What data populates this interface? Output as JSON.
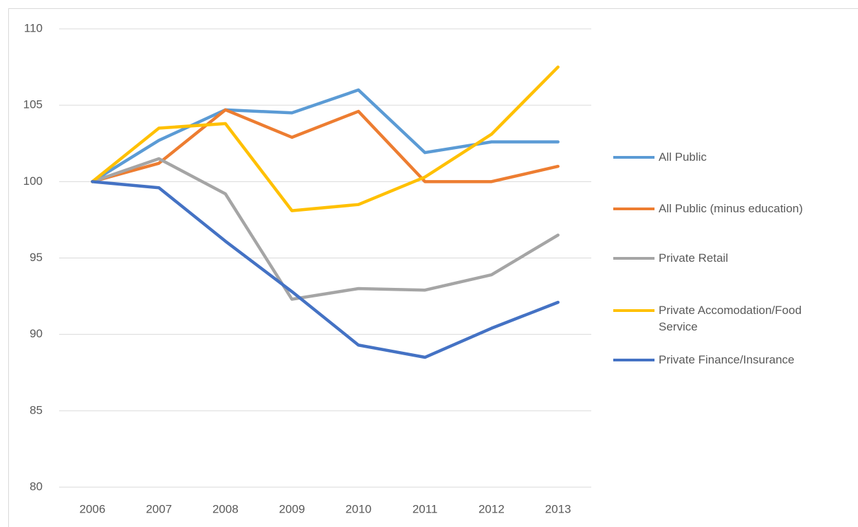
{
  "chart_data": {
    "type": "line",
    "categories": [
      "2006",
      "2007",
      "2008",
      "2009",
      "2010",
      "2011",
      "2012",
      "2013"
    ],
    "series": [
      {
        "name": "All Public",
        "color": "#5b9bd5",
        "values": [
          100,
          102.7,
          104.7,
          104.5,
          106.0,
          101.9,
          102.6,
          102.6
        ]
      },
      {
        "name": "All Public (minus education)",
        "color": "#ed7d31",
        "values": [
          100,
          101.2,
          104.7,
          102.9,
          104.6,
          100.0,
          100.0,
          101.0
        ]
      },
      {
        "name": "Private Retail",
        "color": "#a5a5a5",
        "values": [
          100,
          101.5,
          99.2,
          92.3,
          93.0,
          92.9,
          93.9,
          96.5
        ]
      },
      {
        "name": "Private Accomodation/Food Service",
        "color": "#ffc000",
        "values": [
          100,
          103.5,
          103.8,
          98.1,
          98.5,
          100.3,
          103.1,
          107.5
        ]
      },
      {
        "name": "Private Finance/Insurance",
        "color": "#4472c4",
        "values": [
          100,
          99.6,
          96.1,
          92.8,
          89.3,
          88.5,
          90.4,
          92.1
        ]
      }
    ],
    "ylim": [
      80,
      110
    ],
    "yticks": [
      80,
      85,
      90,
      95,
      100,
      105,
      110
    ],
    "grid": true,
    "legend": "right"
  }
}
